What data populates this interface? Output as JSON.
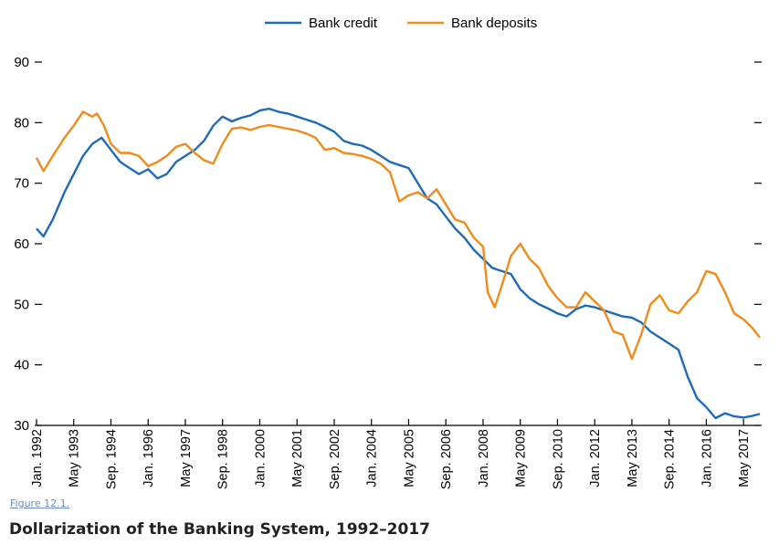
{
  "figure": {
    "caption_link": "Figure 12.1",
    "caption_suffix": ".",
    "title": "Dollarization of the Banking System, 1992–2017"
  },
  "colors": {
    "bank_credit": "#1f6bb7",
    "bank_deposits": "#f28b1a",
    "axis": "#000000"
  },
  "chart_data": {
    "type": "line",
    "title": "",
    "xlabel": "",
    "ylabel": "",
    "ylim": [
      30,
      90
    ],
    "yticks": [
      "30",
      "40",
      "50",
      "60",
      "70",
      "80",
      "90"
    ],
    "xlim": [
      "Jan. 1992",
      "Dec. 2017"
    ],
    "xticks": [
      "Jan. 1992",
      "May 1993",
      "Sep. 1994",
      "Jan. 1996",
      "May 1997",
      "Sep. 1998",
      "Jan. 2000",
      "May 2001",
      "Sep. 2002",
      "Jan. 2004",
      "May 2005",
      "Sep. 2006",
      "Jan. 2008",
      "May 2009",
      "Sep. 2010",
      "Jan. 2012",
      "May 2013",
      "Sep. 2014",
      "Jan. 2016",
      "May 2017"
    ],
    "grid": false,
    "legend": "top-center",
    "series": [
      {
        "name": "Bank credit",
        "points": [
          [
            "1992-01",
            62.5
          ],
          [
            "1992-04",
            61.2
          ],
          [
            "1992-08",
            64
          ],
          [
            "1993-01",
            68.5
          ],
          [
            "1993-05",
            71.5
          ],
          [
            "1993-09",
            74.5
          ],
          [
            "1994-01",
            76.5
          ],
          [
            "1994-05",
            77.5
          ],
          [
            "1994-09",
            75.5
          ],
          [
            "1995-01",
            73.5
          ],
          [
            "1995-05",
            72.5
          ],
          [
            "1995-09",
            71.5
          ],
          [
            "1996-01",
            72.3
          ],
          [
            "1996-05",
            70.8
          ],
          [
            "1996-09",
            71.5
          ],
          [
            "1997-01",
            73.5
          ],
          [
            "1997-05",
            74.5
          ],
          [
            "1997-09",
            75.5
          ],
          [
            "1998-01",
            77
          ],
          [
            "1998-05",
            79.5
          ],
          [
            "1998-09",
            81
          ],
          [
            "1999-01",
            80.2
          ],
          [
            "1999-05",
            80.8
          ],
          [
            "1999-09",
            81.2
          ],
          [
            "2000-01",
            82
          ],
          [
            "2000-05",
            82.3
          ],
          [
            "2000-09",
            81.8
          ],
          [
            "2001-01",
            81.5
          ],
          [
            "2001-05",
            81
          ],
          [
            "2001-09",
            80.5
          ],
          [
            "2002-01",
            80
          ],
          [
            "2002-05",
            79.3
          ],
          [
            "2002-09",
            78.5
          ],
          [
            "2003-01",
            77
          ],
          [
            "2003-05",
            76.5
          ],
          [
            "2003-09",
            76.2
          ],
          [
            "2004-01",
            75.5
          ],
          [
            "2004-05",
            74.5
          ],
          [
            "2004-09",
            73.5
          ],
          [
            "2005-01",
            73
          ],
          [
            "2005-05",
            72.5
          ],
          [
            "2005-09",
            70
          ],
          [
            "2006-01",
            67.5
          ],
          [
            "2006-05",
            66.5
          ],
          [
            "2006-09",
            64.5
          ],
          [
            "2007-01",
            62.5
          ],
          [
            "2007-05",
            61
          ],
          [
            "2007-09",
            59
          ],
          [
            "2008-01",
            57.5
          ],
          [
            "2008-05",
            56
          ],
          [
            "2008-09",
            55.5
          ],
          [
            "2009-01",
            55
          ],
          [
            "2009-05",
            52.5
          ],
          [
            "2009-09",
            51
          ],
          [
            "2010-01",
            50
          ],
          [
            "2010-05",
            49.3
          ],
          [
            "2010-09",
            48.5
          ],
          [
            "2011-01",
            48
          ],
          [
            "2011-05",
            49.2
          ],
          [
            "2011-09",
            49.8
          ],
          [
            "2012-01",
            49.5
          ],
          [
            "2012-05",
            49
          ],
          [
            "2012-09",
            48.5
          ],
          [
            "2013-01",
            48
          ],
          [
            "2013-05",
            47.8
          ],
          [
            "2013-09",
            47
          ],
          [
            "2014-01",
            45.5
          ],
          [
            "2014-05",
            44.5
          ],
          [
            "2014-09",
            43.5
          ],
          [
            "2015-01",
            42.5
          ],
          [
            "2015-05",
            38
          ],
          [
            "2015-09",
            34.5
          ],
          [
            "2016-01",
            33
          ],
          [
            "2016-05",
            31.2
          ],
          [
            "2016-09",
            32
          ],
          [
            "2017-01",
            31.5
          ],
          [
            "2017-05",
            31.3
          ],
          [
            "2017-09",
            31.6
          ],
          [
            "2017-12",
            31.9
          ]
        ]
      },
      {
        "name": "Bank deposits",
        "points": [
          [
            "1992-01",
            74.2
          ],
          [
            "1992-04",
            72
          ],
          [
            "1992-08",
            74.5
          ],
          [
            "1993-01",
            77.5
          ],
          [
            "1993-05",
            79.5
          ],
          [
            "1993-09",
            81.8
          ],
          [
            "1994-01",
            81
          ],
          [
            "1994-03",
            81.5
          ],
          [
            "1994-06",
            79.5
          ],
          [
            "1994-09",
            76.5
          ],
          [
            "1995-01",
            75
          ],
          [
            "1995-05",
            75
          ],
          [
            "1995-09",
            74.5
          ],
          [
            "1996-01",
            72.8
          ],
          [
            "1996-05",
            73.5
          ],
          [
            "1996-09",
            74.5
          ],
          [
            "1997-01",
            76
          ],
          [
            "1997-05",
            76.5
          ],
          [
            "1997-09",
            75
          ],
          [
            "1998-01",
            73.8
          ],
          [
            "1998-05",
            73.2
          ],
          [
            "1998-09",
            76.5
          ],
          [
            "1999-01",
            79
          ],
          [
            "1999-05",
            79.2
          ],
          [
            "1999-09",
            78.8
          ],
          [
            "2000-01",
            79.3
          ],
          [
            "2000-05",
            79.6
          ],
          [
            "2000-09",
            79.3
          ],
          [
            "2001-01",
            79
          ],
          [
            "2001-05",
            78.7
          ],
          [
            "2001-09",
            78.2
          ],
          [
            "2002-01",
            77.5
          ],
          [
            "2002-05",
            75.5
          ],
          [
            "2002-09",
            75.8
          ],
          [
            "2003-01",
            75
          ],
          [
            "2003-05",
            74.8
          ],
          [
            "2003-09",
            74.5
          ],
          [
            "2004-01",
            74
          ],
          [
            "2004-05",
            73.2
          ],
          [
            "2004-09",
            71.8
          ],
          [
            "2005-01",
            67
          ],
          [
            "2005-05",
            68
          ],
          [
            "2005-09",
            68.5
          ],
          [
            "2006-01",
            67.5
          ],
          [
            "2006-05",
            69
          ],
          [
            "2006-09",
            66.5
          ],
          [
            "2007-01",
            64
          ],
          [
            "2007-05",
            63.5
          ],
          [
            "2007-09",
            61
          ],
          [
            "2008-01",
            59.5
          ],
          [
            "2008-03",
            52
          ],
          [
            "2008-06",
            49.5
          ],
          [
            "2008-09",
            53
          ],
          [
            "2009-01",
            58
          ],
          [
            "2009-05",
            60
          ],
          [
            "2009-09",
            57.5
          ],
          [
            "2010-01",
            56
          ],
          [
            "2010-05",
            53
          ],
          [
            "2010-09",
            51
          ],
          [
            "2011-01",
            49.5
          ],
          [
            "2011-05",
            49.5
          ],
          [
            "2011-09",
            52
          ],
          [
            "2012-01",
            50.5
          ],
          [
            "2012-05",
            49
          ],
          [
            "2012-09",
            45.5
          ],
          [
            "2013-01",
            45
          ],
          [
            "2013-05",
            41
          ],
          [
            "2013-09",
            45
          ],
          [
            "2014-01",
            50
          ],
          [
            "2014-05",
            51.5
          ],
          [
            "2014-09",
            49
          ],
          [
            "2015-01",
            48.5
          ],
          [
            "2015-05",
            50.5
          ],
          [
            "2015-09",
            52
          ],
          [
            "2016-01",
            55.5
          ],
          [
            "2016-05",
            55
          ],
          [
            "2016-09",
            52
          ],
          [
            "2017-01",
            48.5
          ],
          [
            "2017-05",
            47.5
          ],
          [
            "2017-09",
            46
          ],
          [
            "2017-12",
            44.5
          ]
        ]
      }
    ]
  }
}
